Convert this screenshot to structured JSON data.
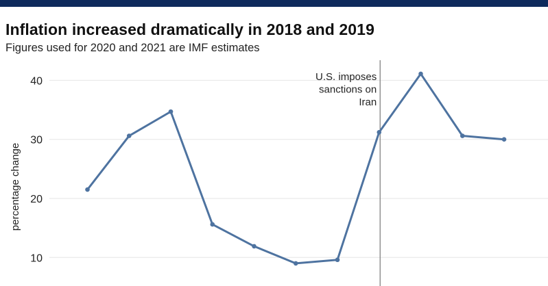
{
  "header": {
    "title": "Inflation increased dramatically in 2018 and 2019",
    "subtitle": "Figures used for 2020 and 2021 are IMF estimates"
  },
  "chart_data": {
    "type": "line",
    "title": "Inflation increased dramatically in 2018 and 2019",
    "subtitle": "Figures used for 2020 and 2021 are IMF estimates",
    "xlabel": "",
    "ylabel": "percentage change",
    "yticks": [
      10,
      20,
      30,
      40
    ],
    "grid": true,
    "legend": "none",
    "series": [
      {
        "name": "",
        "color": "#4e73a0",
        "values": [
          21.5,
          30.6,
          34.7,
          15.6,
          11.9,
          9.0,
          9.6,
          31.2,
          41.1,
          30.6,
          30.0
        ]
      }
    ],
    "annotations": [
      {
        "text_lines": [
          "U.S. imposes",
          "sanctions on",
          "Iran"
        ],
        "at_index": 7
      }
    ]
  }
}
